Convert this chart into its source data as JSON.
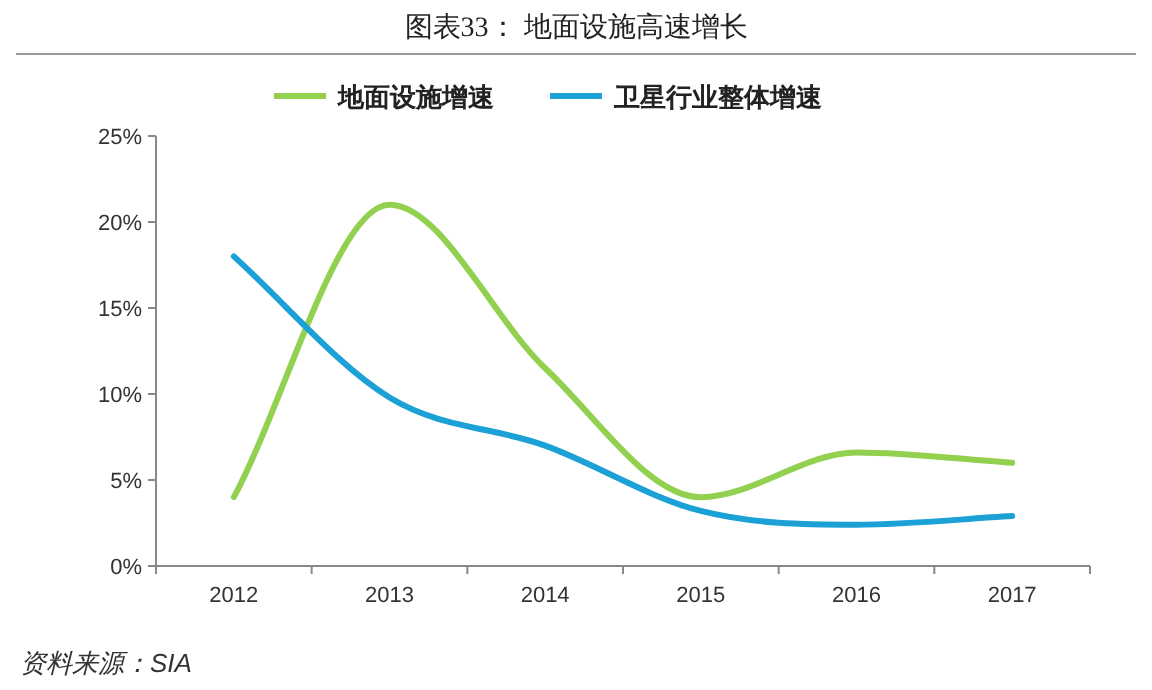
{
  "chart_data": {
    "type": "line",
    "title": "图表33：  地面设施高速增长",
    "categories": [
      "2012",
      "2013",
      "2014",
      "2015",
      "2016",
      "2017"
    ],
    "series": [
      {
        "name": "地面设施增速",
        "color": "#92d050",
        "values": [
          4,
          21,
          11.5,
          4,
          6.6,
          6
        ]
      },
      {
        "name": "卫星行业整体增速",
        "color": "#1ba1d6",
        "values": [
          18,
          9.8,
          7,
          3.2,
          2.4,
          2.9
        ]
      }
    ],
    "ylim": [
      0,
      25
    ],
    "yticks": [
      {
        "value": 0,
        "label": "0%"
      },
      {
        "value": 5,
        "label": "5%"
      },
      {
        "value": 10,
        "label": "10%"
      },
      {
        "value": 15,
        "label": "15%"
      },
      {
        "value": 20,
        "label": "20%"
      },
      {
        "value": 25,
        "label": "25%"
      }
    ],
    "grid": false,
    "legend": "top",
    "marker": "none",
    "line_style": "solid",
    "annotations": [
      "资料来源：SIA"
    ]
  }
}
